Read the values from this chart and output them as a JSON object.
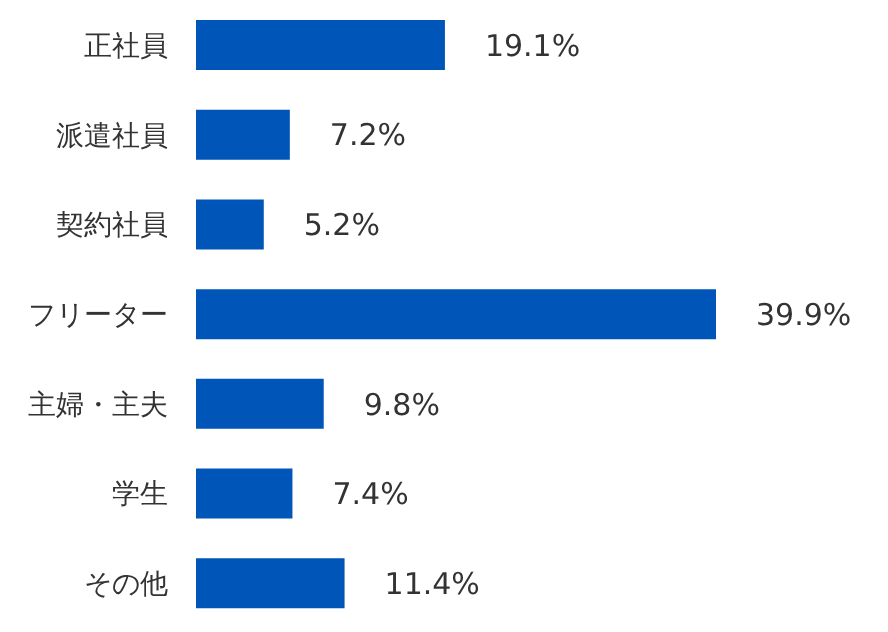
{
  "chart_data": {
    "type": "bar",
    "orientation": "horizontal",
    "categories": [
      "正社員",
      "派遣社員",
      "契約社員",
      "フリーター",
      "主婦・主夫",
      "学生",
      "その他"
    ],
    "values": [
      19.1,
      7.2,
      5.2,
      39.9,
      9.8,
      7.4,
      11.4
    ],
    "value_labels": [
      "19.1%",
      "7.2%",
      "5.2%",
      "39.9%",
      "9.8%",
      "7.4%",
      "11.4%"
    ],
    "color": "#0055b8",
    "legend": false,
    "grid": false
  }
}
